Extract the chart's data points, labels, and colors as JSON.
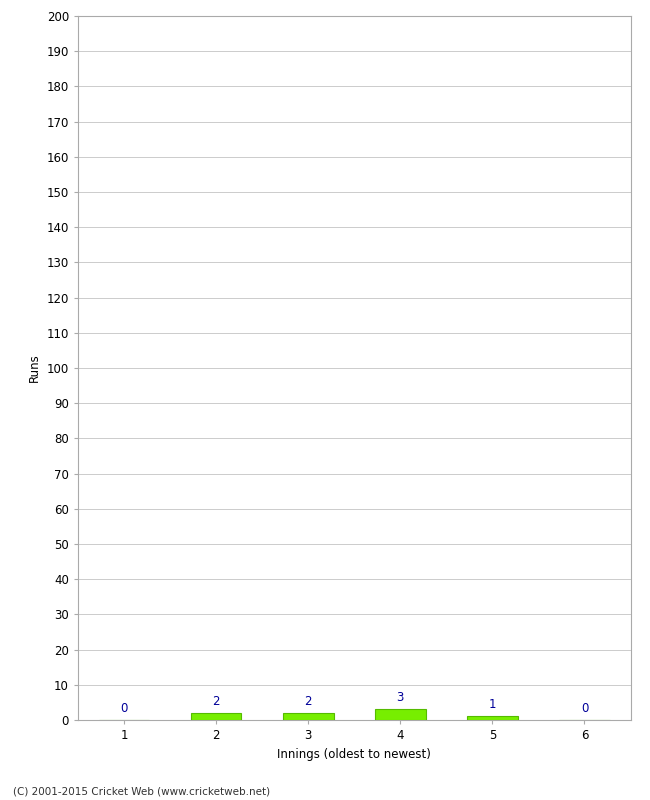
{
  "xlabel": "Innings (oldest to newest)",
  "ylabel": "Runs",
  "categories": [
    1,
    2,
    3,
    4,
    5,
    6
  ],
  "values": [
    0,
    2,
    2,
    3,
    1,
    0
  ],
  "bar_color": "#77ee00",
  "bar_edge_color": "#55bb00",
  "label_color": "#000099",
  "ylim": [
    0,
    200
  ],
  "ytick_step": 10,
  "footer": "(C) 2001-2015 Cricket Web (www.cricketweb.net)",
  "background_color": "#ffffff",
  "grid_color": "#cccccc",
  "bar_width": 0.55,
  "tick_fontsize": 8.5,
  "label_fontsize": 8.5,
  "value_label_fontsize": 8.5
}
